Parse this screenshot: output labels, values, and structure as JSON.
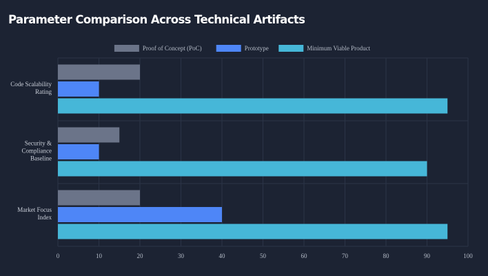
{
  "chart_data": {
    "type": "bar",
    "orientation": "horizontal",
    "title": "Parameter Comparison Across Technical Artifacts",
    "categories": [
      [
        "Code Scalability",
        "Rating"
      ],
      [
        "Security &",
        "Compliance",
        "Baseline"
      ],
      [
        "Market Focus",
        "Index"
      ]
    ],
    "series": [
      {
        "name": "Proof of Concept (PoC)",
        "color": "#6b7489",
        "values": [
          20,
          15,
          20
        ]
      },
      {
        "name": "Prototype",
        "color": "#4e86f7",
        "values": [
          10,
          10,
          40
        ]
      },
      {
        "name": "Minimum Viable Product",
        "color": "#46b7d8",
        "values": [
          95,
          90,
          95
        ]
      }
    ],
    "xlim": [
      0,
      100
    ],
    "xticks": [
      0,
      10,
      20,
      30,
      40,
      50,
      60,
      70,
      80,
      90,
      100
    ],
    "grid": true,
    "legend_position": "top-center"
  }
}
